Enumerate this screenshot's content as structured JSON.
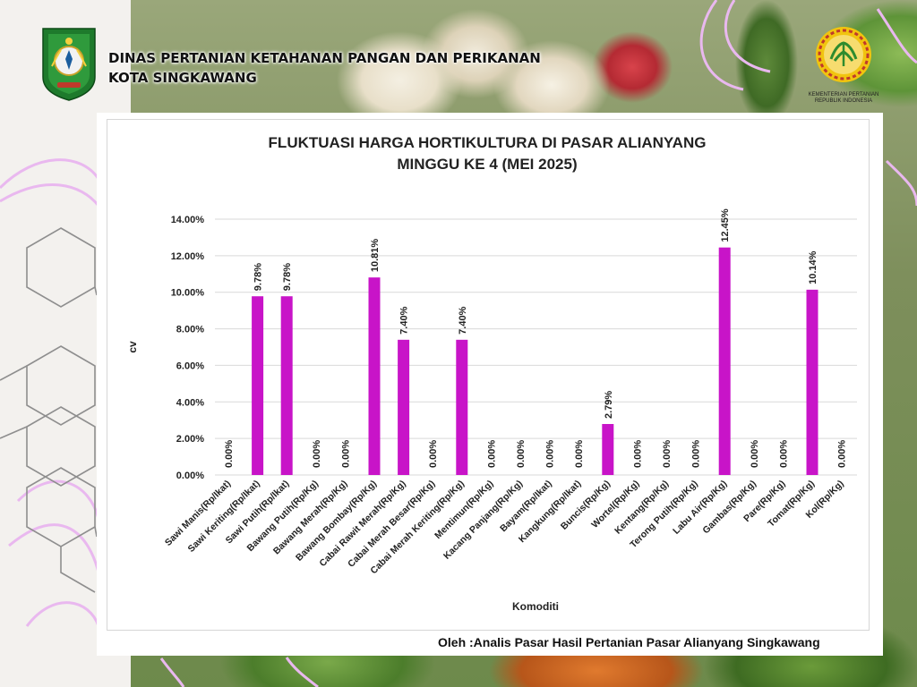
{
  "header": {
    "agency_line1": "DINAS PERTANIAN KETAHANAN PANGAN DAN PERIKANAN",
    "agency_line2": "KOTA SINGKAWANG",
    "ministry_line1": "KEMENTERIAN PERTANIAN",
    "ministry_line2": "REPUBLIK INDONESIA"
  },
  "colors": {
    "bar": "#c814c8",
    "grid": "#d9d9d9",
    "logo_green": "#1e7a2c",
    "ministry_yellow": "#f1c40f",
    "ministry_red": "#c0392b",
    "ministry_green": "#2e8b2e"
  },
  "chart_data": {
    "type": "bar",
    "title_line1": "FLUKTUASI HARGA HORTIKULTURA DI PASAR ALIANYANG",
    "title_line2": "MINGGU KE 4 (MEI 2025)",
    "xlabel": "Komoditi",
    "ylabel": "cv",
    "ylim": [
      0,
      14
    ],
    "yticks": [
      "0.00%",
      "2.00%",
      "4.00%",
      "6.00%",
      "8.00%",
      "10.00%",
      "12.00%",
      "14.00%"
    ],
    "grid": true,
    "categories": [
      "Sawi Manis(Rp/Ikat)",
      "Sawi Keriting(Rp/Ikat)",
      "Sawi Putih(Rp/Ikat)",
      "Bawang Putih(Rp/Kg)",
      "Bawang Merah(Rp/Kg)",
      "Bawang Bombay(Rp/Kg)",
      "Cabai Rawit Merah(Rp/Kg)",
      "Cabai Merah Besar(Rp/Kg)",
      "Cabai Merah Keriting(Rp/Kg)",
      "Mentimun(Rp/Kg)",
      "Kacang Panjang(Rp/Kg)",
      "Bayam(Rp/Ikat)",
      "Kangkung(Rp/Ikat)",
      "Buncis(Rp/Kg)",
      "Wortel(Rp/Kg)",
      "Kentang(Rp/Kg)",
      "Terong Putih(Rp/Kg)",
      "Labu Air(Rp/Kg)",
      "Gambas(Rp/Kg)",
      "Pare(Rp/Kg)",
      "Tomat(Rp/Kg)",
      "Kol(Rp/Kg)"
    ],
    "values": [
      0,
      9.78,
      9.78,
      0,
      0,
      10.81,
      7.4,
      0,
      7.4,
      0,
      0,
      0,
      0,
      2.79,
      0,
      0,
      0,
      12.45,
      0,
      0,
      10.14,
      0
    ],
    "data_labels": [
      "0.00%",
      "9.78%",
      "9.78%",
      "0.00%",
      "0.00%",
      "10.81%",
      "7.40%",
      "0.00%",
      "7.40%",
      "0.00%",
      "0.00%",
      "0.00%",
      "0.00%",
      "2.79%",
      "0.00%",
      "0.00%",
      "0.00%",
      "12.45%",
      "0.00%",
      "0.00%",
      "10.14%",
      "0.00%"
    ]
  },
  "footer": {
    "credit": "Oleh :Analis Pasar Hasil Pertanian Pasar Alianyang Singkawang"
  }
}
